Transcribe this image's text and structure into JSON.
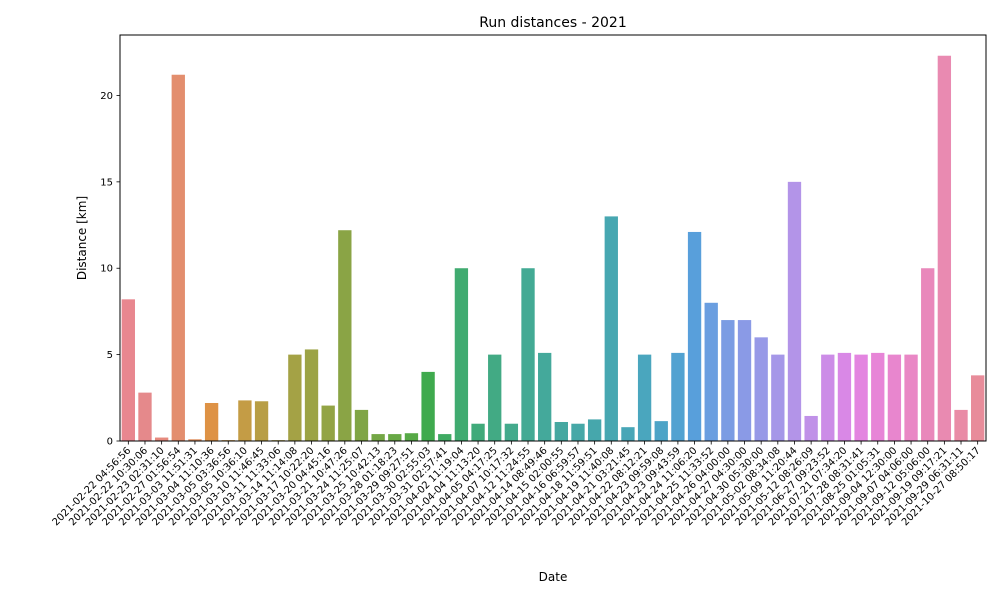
{
  "chart_data": {
    "type": "bar",
    "title": "Run distances - 2021",
    "xlabel": "Date",
    "ylabel": "Distance [km]",
    "ylim": [
      0,
      23.5
    ],
    "yticks": [
      0,
      5,
      10,
      15,
      20
    ],
    "grid": false,
    "legend": "none",
    "categories": [
      "2021-02-22 04:56:56",
      "2021-02-22 10:30:06",
      "2021-02-23 02:31:10",
      "2021-02-27 01:56:54",
      "2021-03-03 11:51:31",
      "2021-03-04 11:10:36",
      "2021-03-05 03:36:56",
      "2021-03-05 10:36:10",
      "2021-03-10 11:46:45",
      "2021-03-11 11:33:06",
      "2021-03-14 11:14:08",
      "2021-03-17 10:22:20",
      "2021-03-20 04:45:16",
      "2021-03-21 10:47:26",
      "2021-03-24 11:25:07",
      "2021-03-25 10:42:13",
      "2021-03-28 01:18:23",
      "2021-03-29 09:27:51",
      "2021-03-30 02:55:03",
      "2021-03-31 02:57:41",
      "2021-04-02 11:19:04",
      "2021-04-04 11:13:20",
      "2021-04-05 04:17:25",
      "2021-04-07 10:17:32",
      "2021-04-12 11:24:55",
      "2021-04-14 08:49:46",
      "2021-04-15 02:00:55",
      "2021-04-16 06:59:57",
      "2021-04-18 11:59:51",
      "2021-04-19 11:40:08",
      "2021-04-21 03:21:45",
      "2021-04-22 08:12:21",
      "2021-04-23 09:59:08",
      "2021-04-23 09:43:59",
      "2021-04-24 11:06:20",
      "2021-04-25 11:33:52",
      "2021-04-26 04:00:00",
      "2021-04-27 04:30:00",
      "2021-04-30 05:30:00",
      "2021-05-02 08:34:08",
      "2021-05-09 11:20:44",
      "2021-05-12 08:26:09",
      "2021-06-27 09:23:52",
      "2021-07-21 07:34:20",
      "2021-07-28 08:31:41",
      "2021-08-25 01:05:31",
      "2021-09-04 12:30:00",
      "2021-09-07 04:06:00",
      "2021-09-12 05:06:00",
      "2021-09-19 09:17:21",
      "2021-09-29 06:31:11",
      "2021-10-27 08:50:17"
    ],
    "values": [
      8.2,
      2.8,
      0.2,
      21.2,
      0.1,
      2.2,
      0.05,
      2.35,
      2.3,
      0.05,
      5.0,
      5.3,
      2.05,
      12.2,
      1.8,
      0.4,
      0.4,
      0.45,
      4.0,
      0.4,
      10.0,
      1.0,
      5.0,
      1.0,
      10.0,
      5.1,
      1.1,
      1.0,
      1.25,
      13.0,
      0.8,
      5.0,
      1.15,
      5.1,
      12.1,
      8.0,
      7.0,
      7.0,
      6.0,
      5.0,
      15.0,
      1.45,
      5.0,
      5.1,
      5.0,
      5.1,
      5.0,
      5.0,
      10.0,
      22.3,
      1.8,
      3.8
    ],
    "colors": [
      "#E8878F",
      "#E5898B",
      "#E68A7E",
      "#E38E6E",
      "#E09060",
      "#DE9245",
      "#CE9A45",
      "#C49C45",
      "#B89E45",
      "#AEA045",
      "#A4A245",
      "#9CA345",
      "#93A445",
      "#8AA445",
      "#80A545",
      "#74A745",
      "#68A845",
      "#56A946",
      "#3FAA4E",
      "#3FAA62",
      "#40AB70",
      "#40AA7A",
      "#42AA84",
      "#43AA8C",
      "#43AA94",
      "#44A99B",
      "#45A8A1",
      "#46A8A7",
      "#46A7AC",
      "#47A7B1",
      "#48A6B7",
      "#4AA6BE",
      "#4DA4C7",
      "#52A2D1",
      "#589FDB",
      "#6A9EE0",
      "#7B9CE3",
      "#8A9AE6",
      "#9799E7",
      "#A597E8",
      "#B394E8",
      "#C091E8",
      "#CC8CE7",
      "#D988E6",
      "#E385E0",
      "#E785D7",
      "#E886CE",
      "#E987C5",
      "#E988BB",
      "#E98AB1",
      "#E98BA6",
      "#E88C9A"
    ]
  }
}
